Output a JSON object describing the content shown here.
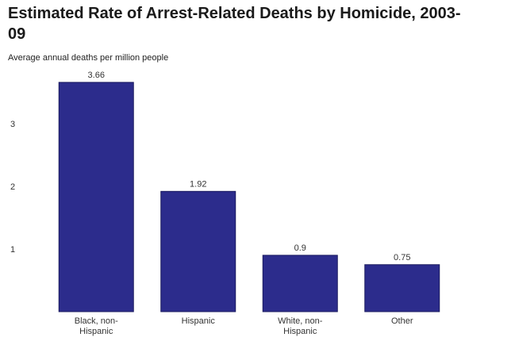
{
  "chart_data": {
    "type": "bar",
    "title": "Estimated Rate of Arrest-Related Deaths by Homicide, 2003-09",
    "y_label": "Average annual deaths per million people",
    "categories": [
      "Black, non-Hispanic",
      "Hispanic",
      "White, non-Hispanic",
      "Other"
    ],
    "values": [
      3.66,
      1.92,
      0.9,
      0.75
    ],
    "color": "#2c2c8c",
    "ylim": [
      0,
      4
    ],
    "yticks": [
      1,
      2,
      3
    ],
    "grid": false
  }
}
